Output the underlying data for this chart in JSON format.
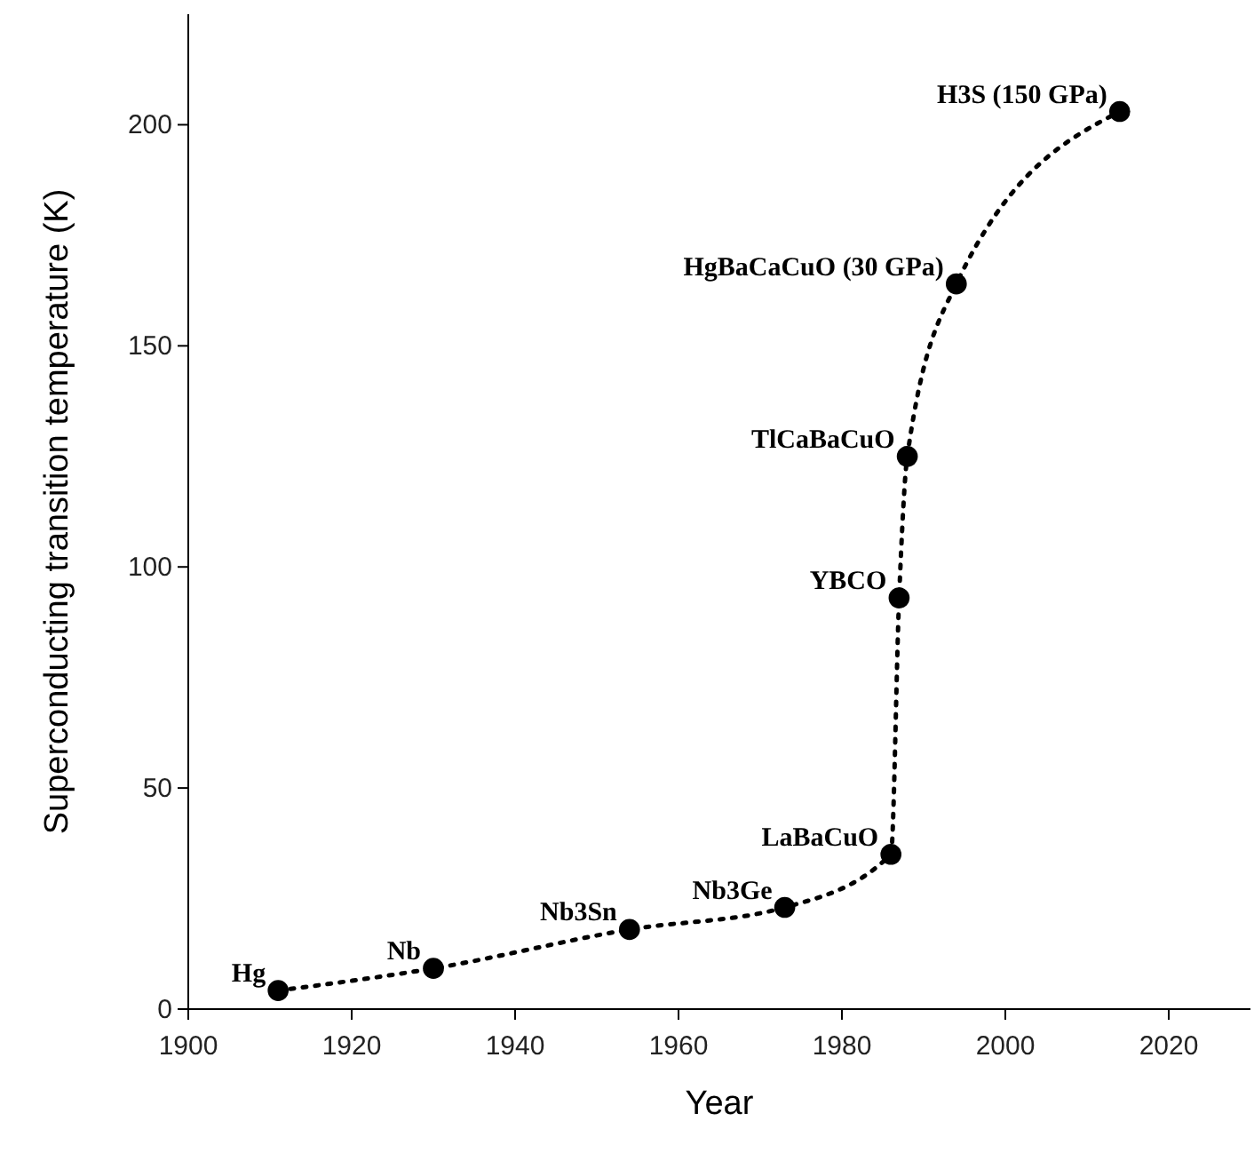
{
  "chart_data": {
    "type": "line",
    "xlabel": "Year",
    "ylabel": "Superconducting transition temperature (K)",
    "x": [
      1911,
      1930,
      1954,
      1973,
      1986,
      1987,
      1988,
      1994,
      2014
    ],
    "series": [
      {
        "color": "#000000",
        "values": [
          4.2,
          9.2,
          18,
          23,
          35,
          93,
          125,
          164,
          203
        ]
      }
    ],
    "xlim": [
      1900,
      2030
    ],
    "xticks": [
      1900,
      1920,
      1940,
      1960,
      1980,
      2000,
      2020
    ],
    "ylim": [
      0,
      225
    ],
    "yticks": [
      0,
      50,
      100,
      150,
      200
    ],
    "grid": false,
    "marker": "circle",
    "line_style": "dotted",
    "annotations": [
      {
        "text": "Hg",
        "x": 1911,
        "y": 4.2
      },
      {
        "text": "Nb",
        "x": 1930,
        "y": 9.2
      },
      {
        "text": "Nb3Sn",
        "x": 1954,
        "y": 18
      },
      {
        "text": "Nb3Ge",
        "x": 1973,
        "y": 23
      },
      {
        "text": "LaBaCuO",
        "x": 1986,
        "y": 35
      },
      {
        "text": "YBCO",
        "x": 1987,
        "y": 93
      },
      {
        "text": "TlCaBaCuO",
        "x": 1988,
        "y": 125
      },
      {
        "text": "HgBaCaCuO (30 GPa)",
        "x": 1994,
        "y": 164
      },
      {
        "text": "H3S (150 GPa)",
        "x": 2014,
        "y": 203
      }
    ]
  }
}
